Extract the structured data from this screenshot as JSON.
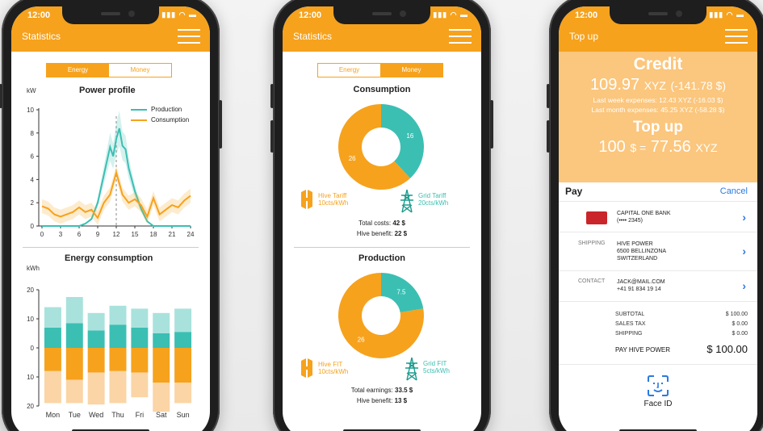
{
  "status_time": "12:00",
  "phone1": {
    "title": "Statistics",
    "toggle": {
      "energy": "Energy",
      "money": "Money"
    },
    "power_profile": {
      "title": "Power profile",
      "unit": "kW",
      "legend": [
        "Production",
        "Consumption"
      ],
      "yticks": [
        "10",
        "8",
        "6",
        "4",
        "2",
        "0"
      ],
      "xticks": [
        "0",
        "3",
        "6",
        "9",
        "12",
        "15",
        "18",
        "21",
        "24"
      ]
    },
    "energy_consumption": {
      "title": "Energy consumption",
      "unit": "kWh",
      "yticks": [
        "20",
        "10",
        "0",
        "10",
        "20"
      ],
      "days": [
        "Mon",
        "Tue",
        "Wed",
        "Thu",
        "Fri",
        "Sat",
        "Sun"
      ]
    }
  },
  "phone2": {
    "title": "Statistics",
    "toggle": {
      "energy": "Energy",
      "money": "Money"
    },
    "consumption": {
      "title": "Consumption",
      "hive_label": "Hive Tariff",
      "hive_rate": "10cts/kWh",
      "grid_label": "Grid Tariff",
      "grid_rate": "20cts/kWh",
      "total_label": "Total costs:",
      "total_value": "42 $",
      "benefit_label": "Hive benefit:",
      "benefit_value": "22 $"
    },
    "production": {
      "title": "Production",
      "hive_label": "Hive FIT",
      "hive_rate": "10cts/kWh",
      "grid_label": "Grid FIT",
      "grid_rate": "5cts/kWh",
      "total_label": "Total earnings:",
      "total_value": "33.5 $",
      "benefit_label": "Hive benefit:",
      "benefit_value": "13 $"
    }
  },
  "phone3": {
    "title": "Top up",
    "credit_title": "Credit",
    "credit_value": "109.97",
    "credit_unit": "XYZ",
    "credit_usd": "(-141.78 $)",
    "last_week": "Last week expenses: 12.43 XYZ (-16.03 $)",
    "last_month": "Last month expenses: 45.25 XYZ (-58.28 $)",
    "topup_title": "Top up",
    "topup_amount": "100",
    "topup_currency": "$ =",
    "topup_xyz": "77.56",
    "topup_xyz_unit": "XYZ",
    "pay_label": "Pay",
    "cancel": "Cancel",
    "card_name": "CAPITAL ONE BANK",
    "card_number": "(•••• 2345)",
    "shipping_label": "SHIPPING",
    "shipping_l1": "HIVE POWER",
    "shipping_l2": "6500 BELLINZONA",
    "shipping_l3": "SWITZERLAND",
    "contact_label": "CONTACT",
    "contact_email": "JACK@MAIL.COM",
    "contact_phone": "+41 91 834 19 14",
    "subtotal_label": "SUBTOTAL",
    "subtotal_value": "$ 100.00",
    "tax_label": "SALES TAX",
    "tax_value": "$ 0.00",
    "ship_label": "SHIPPING",
    "ship_value": "$ 0.00",
    "pay_hive_label": "PAY HIVE POWER",
    "pay_hive_value": "$ 100.00",
    "face_id": "Face ID"
  },
  "colors": {
    "orange": "#f6a21d",
    "teal": "#3bbfb3",
    "light_orange": "#fbc67d"
  },
  "chart_data": [
    {
      "type": "line",
      "title": "Power profile",
      "ylabel": "kW",
      "ylim": [
        0,
        10
      ],
      "xlim": [
        0,
        24
      ],
      "series": [
        {
          "name": "Production",
          "x": [
            0,
            6,
            7,
            8,
            9,
            10,
            11,
            11.5,
            12,
            12.5,
            13,
            13.5,
            14,
            15,
            16,
            17,
            18,
            20,
            24
          ],
          "y": [
            0,
            0,
            0.2,
            0.6,
            2.0,
            4.4,
            6.8,
            6.0,
            7.5,
            8.4,
            6.9,
            6.6,
            5.0,
            3.0,
            1.5,
            0.4,
            0,
            0,
            0
          ]
        },
        {
          "name": "Consumption",
          "x": [
            0,
            1,
            2,
            3,
            4,
            5,
            6,
            7,
            8,
            9,
            10,
            11,
            12,
            13,
            14,
            15,
            16,
            17,
            18,
            19,
            20,
            21,
            22,
            23,
            24
          ],
          "y": [
            1.7,
            1.5,
            1.0,
            0.8,
            1.0,
            1.2,
            1.6,
            1.2,
            1.4,
            0.7,
            2.0,
            2.7,
            4.6,
            2.7,
            2.0,
            2.3,
            1.8,
            0.8,
            2.4,
            1.0,
            1.4,
            1.8,
            1.6,
            2.2,
            2.6
          ]
        }
      ]
    },
    {
      "type": "bar",
      "title": "Energy consumption",
      "ylabel": "kWh",
      "ylim": [
        -20,
        20
      ],
      "categories": [
        "Mon",
        "Tue",
        "Wed",
        "Thu",
        "Fri",
        "Sat",
        "Sun"
      ],
      "series": [
        {
          "values": [
            7,
            8.5,
            6,
            8,
            7,
            5,
            5.5
          ]
        },
        {
          "values": [
            7,
            9,
            6,
            6.5,
            6.5,
            7,
            8
          ]
        },
        {
          "values": [
            -8,
            -11,
            -8.5,
            -8,
            -8.5,
            -12,
            -12
          ]
        },
        {
          "values": [
            -11,
            -8,
            -11,
            -11,
            -8.5,
            -10,
            -7
          ]
        }
      ]
    },
    {
      "type": "pie",
      "title": "Consumption",
      "categories": [
        "Grid Tariff",
        "Hive Tariff"
      ],
      "values": [
        16,
        26
      ]
    },
    {
      "type": "pie",
      "title": "Production",
      "categories": [
        "Grid FIT",
        "Hive FIT"
      ],
      "values": [
        7.5,
        26
      ]
    }
  ]
}
